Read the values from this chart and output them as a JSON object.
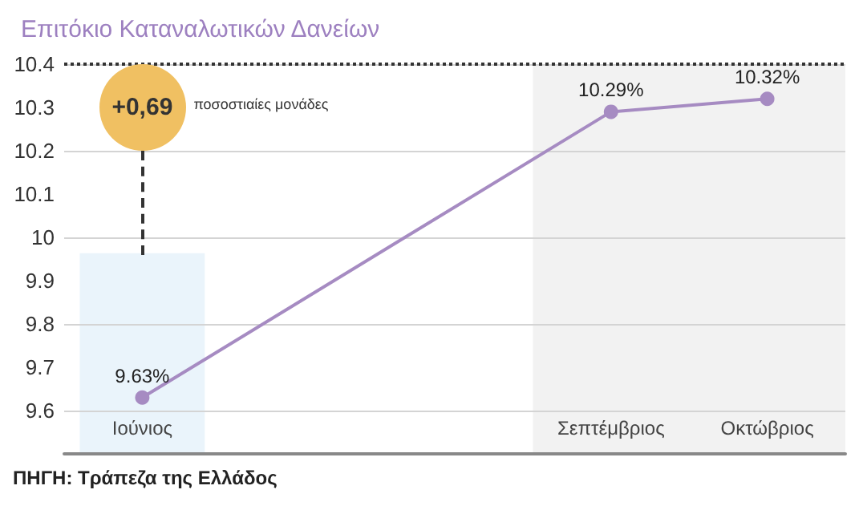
{
  "chart_data": {
    "type": "line",
    "title": "Επιτόκιο Καταναλωτικών Δανείων",
    "categories": [
      "Ιούνιος",
      null,
      null,
      "Σεπτέμβριος",
      "Οκτώβριος"
    ],
    "series": [
      {
        "color": "#a68bc2",
        "values": [
          9.63,
          null,
          null,
          10.29,
          10.32
        ],
        "value_labels": [
          "9.63%",
          null,
          null,
          "10.29%",
          "10.32%"
        ]
      }
    ],
    "ylim": [
      9.5,
      10.4
    ],
    "yticks": [
      9.6,
      9.7,
      9.8,
      9.9,
      10,
      10.1,
      10.2,
      10.3,
      10.4
    ],
    "grid": "y",
    "marker": "circle",
    "line_style": "solid",
    "ref_lines": [
      {
        "axis": "y",
        "value": 10.4,
        "color": "#333333",
        "line_style": "dotted"
      }
    ],
    "bands": [
      {
        "axis": "x",
        "from": "Ιούνιος",
        "to": "Ιούνιος",
        "color": "#eaf4fb"
      },
      {
        "axis": "x",
        "from": "Σεπτέμβριος",
        "to": "Οκτώβριος",
        "color": "#f2f2f2"
      }
    ],
    "annotations": [
      {
        "text": "+0,69",
        "x": "Ιούνιος",
        "y": 9.96
      },
      "ποσοστιαίες μονάδες",
      "ΠΗΓΗ: Τράπεζα της Ελλάδος"
    ]
  }
}
